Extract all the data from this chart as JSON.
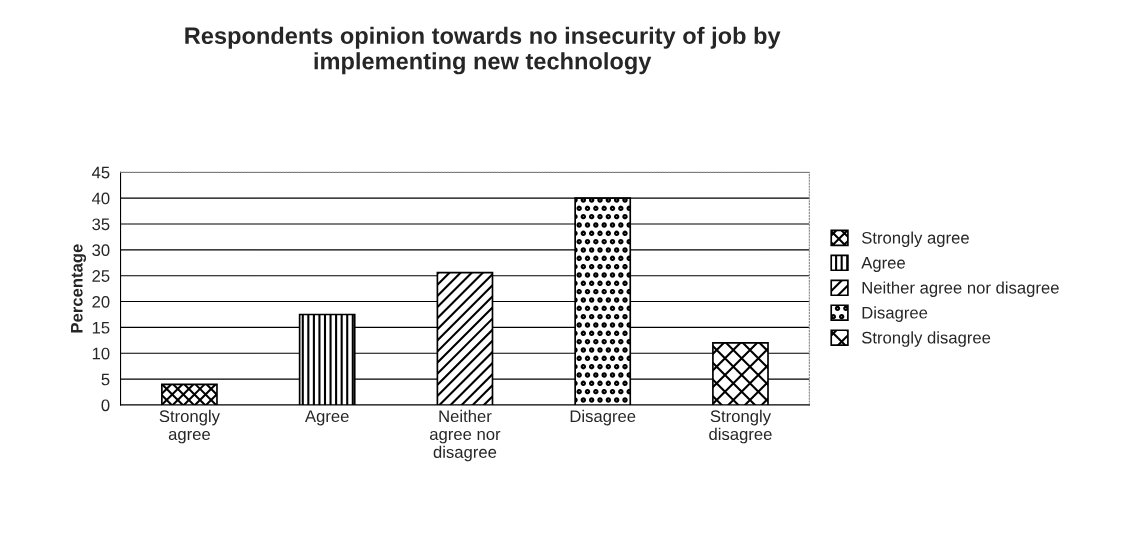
{
  "chart_data": {
    "type": "bar",
    "title": "Respondents opinion towards no insecurity of job by\nimplementing new technology",
    "ylabel": "Percentage",
    "categories": [
      "Strongly\nagree",
      "Agree",
      "Neither\nagree nor\ndisagree",
      "Disagree",
      "Strongly\ndisagree"
    ],
    "series": [
      {
        "name": "Strongly agree",
        "color": "#000000",
        "values": [
          4,
          null,
          null,
          null,
          null
        ]
      },
      {
        "name": "Agree",
        "color": "#000000",
        "values": [
          null,
          17.5,
          null,
          null,
          null
        ]
      },
      {
        "name": "Neither agree nor disagree",
        "color": "#000000",
        "values": [
          null,
          null,
          25.6,
          null,
          null
        ]
      },
      {
        "name": "Disagree",
        "color": "#000000",
        "values": [
          null,
          null,
          null,
          40,
          null
        ]
      },
      {
        "name": "Strongly disagree",
        "color": "#000000",
        "values": [
          null,
          null,
          null,
          null,
          12
        ]
      }
    ],
    "ylim": [
      0,
      45
    ],
    "yticks": [
      0,
      5,
      10,
      15,
      20,
      25,
      30,
      35,
      40,
      45
    ],
    "grid": "y",
    "legend": "right"
  }
}
